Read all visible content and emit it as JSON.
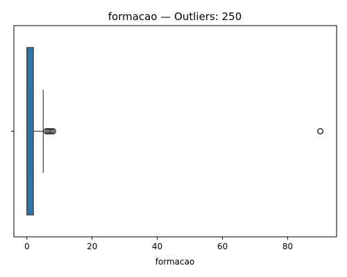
{
  "chart_data": {
    "type": "boxplot",
    "orientation": "horizontal",
    "title": "formacao — Outliers: 250",
    "xlabel": "formacao",
    "ylabel": "",
    "xlim": [
      -4,
      95
    ],
    "xticks": [
      0,
      20,
      40,
      60,
      80
    ],
    "xtick_labels": [
      "0",
      "20",
      "40",
      "60",
      "80"
    ],
    "grid": false,
    "box": {
      "min": 0,
      "q1": 0,
      "median": 0,
      "q3": 2,
      "max": 5
    },
    "outliers": [
      6,
      6.5,
      7,
      7.5,
      8,
      90
    ],
    "colors": {
      "box_fill": "#3274a1",
      "line": "#3f3f3f",
      "outlier_edge": "#3f3f3f"
    }
  }
}
